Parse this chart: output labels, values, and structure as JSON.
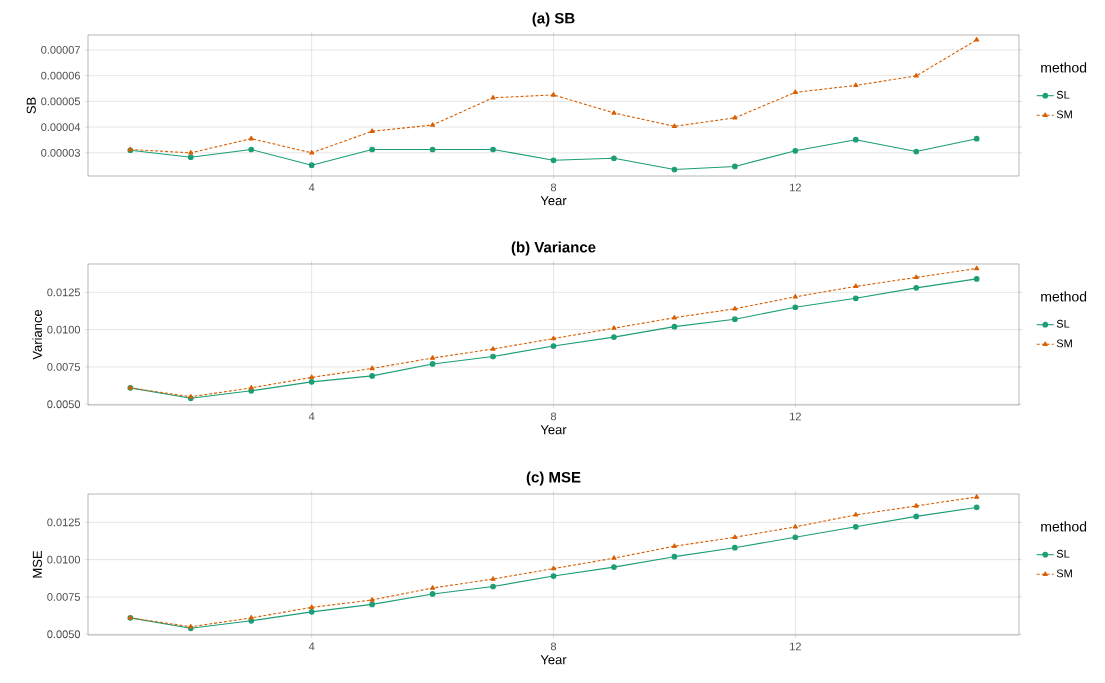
{
  "chart_data": [
    {
      "type": "line",
      "title": "(a) SB",
      "xlabel": "Year",
      "ylabel": "SB",
      "legend_title": "method",
      "legend": "right",
      "grid": true,
      "x": [
        1,
        2,
        3,
        4,
        5,
        6,
        7,
        8,
        9,
        10,
        11,
        12,
        13,
        14,
        15
      ],
      "xlim": [
        0.3,
        15.7
      ],
      "xticks": [
        4,
        8,
        12
      ],
      "ylim": [
        2.1e-05,
        7.58e-05
      ],
      "yticks": [
        {
          "value": 3e-05,
          "label": "0.00003"
        },
        {
          "value": 4e-05,
          "label": "0.00004"
        },
        {
          "value": 5e-05,
          "label": "0.00005"
        },
        {
          "value": 6e-05,
          "label": "0.00006"
        },
        {
          "value": 7e-05,
          "label": "0.00007"
        }
      ],
      "series": [
        {
          "name": "SL",
          "color": "#1b9e77",
          "marker": "circle",
          "line_style": "solid",
          "values": [
            3.1e-05,
            2.83e-05,
            3.13e-05,
            2.52e-05,
            3.13e-05,
            3.13e-05,
            3.13e-05,
            2.71e-05,
            2.79e-05,
            2.35e-05,
            2.47e-05,
            3.08e-05,
            3.51e-05,
            3.05e-05,
            3.55e-05
          ]
        },
        {
          "name": "SM",
          "color": "#d95f02",
          "marker": "triangle",
          "line_style": "dashed",
          "values": [
            3.13e-05,
            3e-05,
            3.55e-05,
            3e-05,
            3.84e-05,
            4.08e-05,
            5.14e-05,
            5.25e-05,
            4.55e-05,
            4.03e-05,
            4.36e-05,
            5.35e-05,
            5.62e-05,
            5.99e-05,
            7.39e-05
          ]
        }
      ]
    },
    {
      "type": "line",
      "title": "(b) Variance",
      "xlabel": "Year",
      "ylabel": "Variance",
      "legend_title": "method",
      "legend": "right",
      "grid": true,
      "x": [
        1,
        2,
        3,
        4,
        5,
        6,
        7,
        8,
        9,
        10,
        11,
        12,
        13,
        14,
        15
      ],
      "xlim": [
        0.3,
        15.7
      ],
      "xticks": [
        4,
        8,
        12
      ],
      "ylim": [
        0.00495,
        0.0144
      ],
      "yticks": [
        {
          "value": 0.005,
          "label": "0.0050"
        },
        {
          "value": 0.0075,
          "label": "0.0075"
        },
        {
          "value": 0.01,
          "label": "0.0100"
        },
        {
          "value": 0.0125,
          "label": "0.0125"
        }
      ],
      "series": [
        {
          "name": "SL",
          "color": "#1b9e77",
          "marker": "circle",
          "line_style": "solid",
          "values": [
            0.0061,
            0.0054,
            0.0059,
            0.0065,
            0.0069,
            0.0077,
            0.0082,
            0.0089,
            0.0095,
            0.0102,
            0.0107,
            0.0115,
            0.0121,
            0.0128,
            0.0134
          ]
        },
        {
          "name": "SM",
          "color": "#d95f02",
          "marker": "triangle",
          "line_style": "dashed",
          "values": [
            0.0061,
            0.0055,
            0.0061,
            0.0068,
            0.0074,
            0.0081,
            0.0087,
            0.0094,
            0.0101,
            0.0108,
            0.0114,
            0.0122,
            0.0129,
            0.0135,
            0.0141
          ]
        }
      ]
    },
    {
      "type": "line",
      "title": "(c) MSE",
      "xlabel": "Year",
      "ylabel": "MSE",
      "legend_title": "method",
      "legend": "right",
      "grid": true,
      "x": [
        1,
        2,
        3,
        4,
        5,
        6,
        7,
        8,
        9,
        10,
        11,
        12,
        13,
        14,
        15
      ],
      "xlim": [
        0.3,
        15.7
      ],
      "xticks": [
        4,
        8,
        12
      ],
      "ylim": [
        0.00495,
        0.0144
      ],
      "yticks": [
        {
          "value": 0.005,
          "label": "0.0050"
        },
        {
          "value": 0.0075,
          "label": "0.0075"
        },
        {
          "value": 0.01,
          "label": "0.0100"
        },
        {
          "value": 0.0125,
          "label": "0.0125"
        }
      ],
      "series": [
        {
          "name": "SL",
          "color": "#1b9e77",
          "marker": "circle",
          "line_style": "solid",
          "values": [
            0.0061,
            0.0054,
            0.0059,
            0.0065,
            0.007,
            0.0077,
            0.0082,
            0.0089,
            0.0095,
            0.0102,
            0.0108,
            0.0115,
            0.0122,
            0.0129,
            0.0135
          ]
        },
        {
          "name": "SM",
          "color": "#d95f02",
          "marker": "triangle",
          "line_style": "dashed",
          "values": [
            0.0061,
            0.0055,
            0.0061,
            0.0068,
            0.0073,
            0.0081,
            0.0087,
            0.0094,
            0.0101,
            0.0109,
            0.0115,
            0.0122,
            0.013,
            0.0136,
            0.0142
          ]
        }
      ]
    }
  ]
}
